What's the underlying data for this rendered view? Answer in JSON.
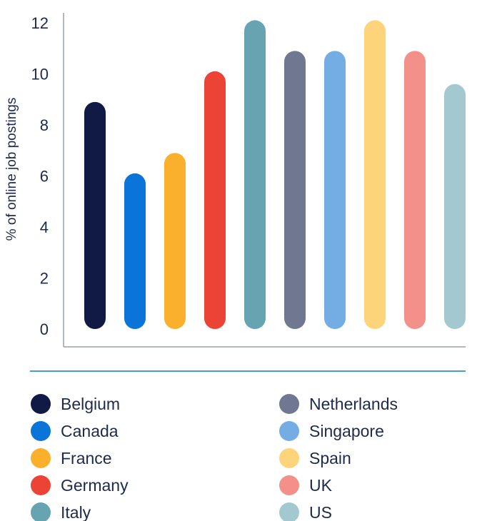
{
  "chart_data": {
    "type": "bar",
    "title": "",
    "ylabel": "% of online job postings",
    "xlabel": "",
    "ylim": [
      0,
      12
    ],
    "yticks": [
      0,
      2,
      4,
      6,
      8,
      10,
      12
    ],
    "grid": false,
    "legend_position": "bottom",
    "categories": [
      "Belgium",
      "Canada",
      "France",
      "Germany",
      "Italy",
      "Netherlands",
      "Singapore",
      "Spain",
      "UK",
      "US"
    ],
    "values": [
      8.9,
      6.1,
      6.9,
      10.1,
      12.1,
      10.9,
      10.9,
      12.1,
      10.9,
      9.6
    ],
    "colors": [
      "#101a45",
      "#0b74d9",
      "#fbb02d",
      "#ec4337",
      "#66a4b1",
      "#6f7890",
      "#73ade4",
      "#fdd47a",
      "#f3908a",
      "#a4c8cf"
    ],
    "legend": [
      "Belgium",
      "Canada",
      "France",
      "Germany",
      "Italy",
      "Netherlands",
      "Singapore",
      "Spain",
      "UK",
      "US"
    ]
  }
}
